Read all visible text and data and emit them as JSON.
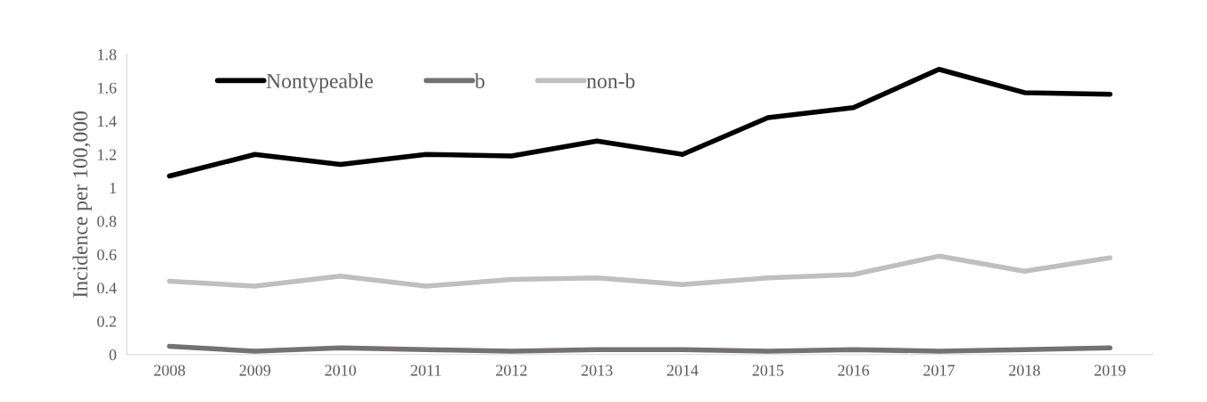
{
  "chart_data": {
    "type": "line",
    "ylabel": "Incidence per 100,000",
    "categories": [
      "2008",
      "2009",
      "2010",
      "2011",
      "2012",
      "2013",
      "2014",
      "2015",
      "2016",
      "2017",
      "2018",
      "2019"
    ],
    "series": [
      {
        "name": "Nontypeable",
        "color": "#000000",
        "values": [
          1.07,
          1.2,
          1.14,
          1.2,
          1.19,
          1.28,
          1.2,
          1.42,
          1.48,
          1.71,
          1.57,
          1.56
        ]
      },
      {
        "name": "b",
        "color": "#767171",
        "values": [
          0.05,
          0.02,
          0.04,
          0.03,
          0.02,
          0.03,
          0.03,
          0.02,
          0.03,
          0.02,
          0.03,
          0.04
        ]
      },
      {
        "name": "non-b",
        "color": "#bfbfbf",
        "values": [
          0.44,
          0.41,
          0.47,
          0.41,
          0.45,
          0.46,
          0.42,
          0.46,
          0.48,
          0.59,
          0.5,
          0.58
        ]
      }
    ],
    "ylim": [
      0,
      1.8
    ],
    "yticks": [
      0,
      0.2,
      0.4,
      0.6,
      0.8,
      1,
      1.2,
      1.4,
      1.6,
      1.8
    ],
    "grid": false,
    "legend": "top left",
    "marker": "none",
    "line_style": "solid"
  }
}
